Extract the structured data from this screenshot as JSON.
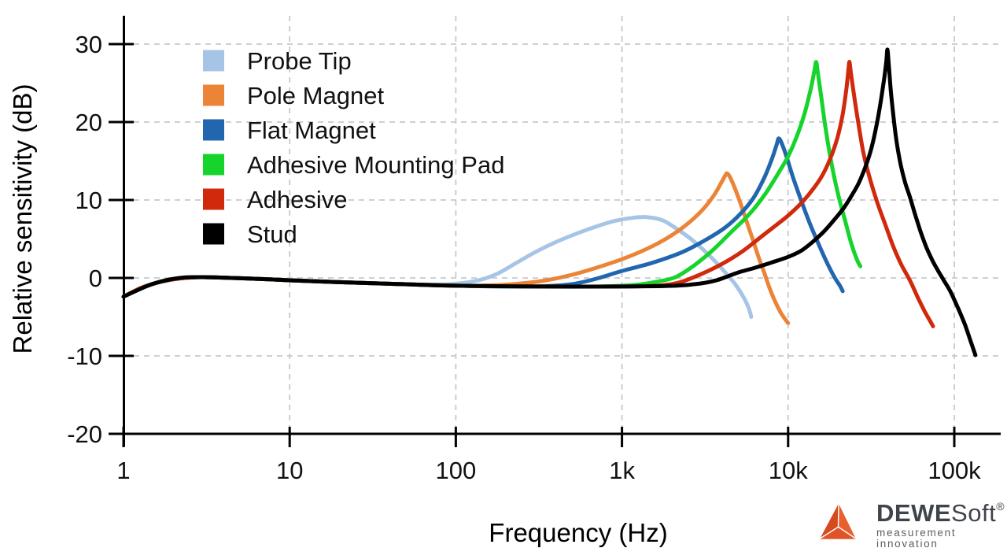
{
  "chart_data": {
    "type": "line",
    "title": "",
    "xlabel": "Frequency (Hz)",
    "ylabel": "Relative sensitivity (dB)",
    "x_scale": "log",
    "xlim": [
      1,
      190000
    ],
    "ylim": [
      -20,
      30
    ],
    "grid": true,
    "grid_style": "dashed",
    "grid_color": "#c6cacd",
    "axis_color": "#000000",
    "legend_position": "top-left",
    "x_ticks": [
      {
        "value": 1,
        "label": "1"
      },
      {
        "value": 10,
        "label": "10"
      },
      {
        "value": 100,
        "label": "100"
      },
      {
        "value": 1000,
        "label": "1k"
      },
      {
        "value": 10000,
        "label": "10k"
      },
      {
        "value": 100000,
        "label": "100k"
      }
    ],
    "y_ticks": [
      {
        "value": 30,
        "label": "30"
      },
      {
        "value": 20,
        "label": "20"
      },
      {
        "value": 10,
        "label": "10"
      },
      {
        "value": 0,
        "label": "0"
      },
      {
        "value": -10,
        "label": "-10"
      },
      {
        "value": -20,
        "label": "-20"
      }
    ],
    "points_format": [
      "frequency_hz",
      "relative_sensitivity_db"
    ],
    "series": [
      {
        "name": "Probe Tip",
        "color": "#a6c5e6",
        "points": [
          [
            1,
            -2.4
          ],
          [
            1.3,
            -1.2
          ],
          [
            1.7,
            -0.45
          ],
          [
            2.2,
            -0.05
          ],
          [
            3,
            0.1
          ],
          [
            4.5,
            0
          ],
          [
            7,
            -0.15
          ],
          [
            10,
            -0.3
          ],
          [
            20,
            -0.55
          ],
          [
            45,
            -0.78
          ],
          [
            70,
            -0.85
          ],
          [
            100,
            -0.75
          ],
          [
            140,
            -0.25
          ],
          [
            180,
            0.6
          ],
          [
            230,
            1.9
          ],
          [
            300,
            3.3
          ],
          [
            400,
            4.6
          ],
          [
            550,
            5.8
          ],
          [
            700,
            6.6
          ],
          [
            900,
            7.3
          ],
          [
            1150,
            7.7
          ],
          [
            1400,
            7.8
          ],
          [
            1750,
            7.4
          ],
          [
            2100,
            6.4
          ],
          [
            2600,
            5
          ],
          [
            3200,
            3.3
          ],
          [
            3800,
            1.7
          ],
          [
            4300,
            0.4
          ],
          [
            4800,
            -0.8
          ],
          [
            5400,
            -2.5
          ],
          [
            5800,
            -3.9
          ],
          [
            6000,
            -5
          ]
        ]
      },
      {
        "name": "Pole Magnet",
        "color": "#ec8438",
        "points": [
          [
            1,
            -2.4
          ],
          [
            1.3,
            -1.2
          ],
          [
            1.7,
            -0.45
          ],
          [
            2.2,
            -0.05
          ],
          [
            3,
            0.1
          ],
          [
            4.5,
            0
          ],
          [
            7,
            -0.15
          ],
          [
            10,
            -0.3
          ],
          [
            20,
            -0.55
          ],
          [
            45,
            -0.78
          ],
          [
            100,
            -1
          ],
          [
            170,
            -0.95
          ],
          [
            250,
            -0.7
          ],
          [
            350,
            -0.3
          ],
          [
            500,
            0.4
          ],
          [
            700,
            1.3
          ],
          [
            1000,
            2.4
          ],
          [
            1400,
            3.7
          ],
          [
            1900,
            5.2
          ],
          [
            2500,
            7
          ],
          [
            3100,
            8.9
          ],
          [
            3600,
            10.7
          ],
          [
            4000,
            12.4
          ],
          [
            4200,
            13.2
          ],
          [
            4300,
            13.4
          ],
          [
            4500,
            12.8
          ],
          [
            4800,
            11.4
          ],
          [
            5200,
            9.4
          ],
          [
            5700,
            6.9
          ],
          [
            6200,
            4.6
          ],
          [
            6700,
            2.4
          ],
          [
            7200,
            0.6
          ],
          [
            7700,
            -1.2
          ],
          [
            8300,
            -2.9
          ],
          [
            9000,
            -4.4
          ],
          [
            9600,
            -5.3
          ],
          [
            10000,
            -5.8
          ]
        ]
      },
      {
        "name": "Flat Magnet",
        "color": "#2166ae",
        "points": [
          [
            1,
            -2.4
          ],
          [
            1.3,
            -1.2
          ],
          [
            1.7,
            -0.45
          ],
          [
            2.2,
            -0.05
          ],
          [
            3,
            0.1
          ],
          [
            4.5,
            0
          ],
          [
            7,
            -0.15
          ],
          [
            10,
            -0.3
          ],
          [
            20,
            -0.55
          ],
          [
            45,
            -0.78
          ],
          [
            100,
            -1
          ],
          [
            200,
            -1.1
          ],
          [
            350,
            -1.05
          ],
          [
            500,
            -0.8
          ],
          [
            700,
            -0.1
          ],
          [
            1000,
            0.9
          ],
          [
            1500,
            1.9
          ],
          [
            2300,
            3.3
          ],
          [
            3200,
            4.9
          ],
          [
            4200,
            6.5
          ],
          [
            5200,
            8.3
          ],
          [
            6200,
            10.3
          ],
          [
            7200,
            12.9
          ],
          [
            8000,
            15.3
          ],
          [
            8500,
            17
          ],
          [
            8800,
            17.9
          ],
          [
            9300,
            16.9
          ],
          [
            9900,
            15.2
          ],
          [
            10700,
            12.9
          ],
          [
            12000,
            9.9
          ],
          [
            13500,
            7
          ],
          [
            15000,
            4.7
          ],
          [
            17000,
            2.1
          ],
          [
            19000,
            0.1
          ],
          [
            20500,
            -1
          ],
          [
            21300,
            -1.7
          ]
        ]
      },
      {
        "name": "Adhesive Mounting Pad",
        "color": "#15d42c",
        "points": [
          [
            1,
            -2.4
          ],
          [
            1.3,
            -1.2
          ],
          [
            1.7,
            -0.45
          ],
          [
            2.2,
            -0.05
          ],
          [
            3,
            0.1
          ],
          [
            4.5,
            0
          ],
          [
            7,
            -0.15
          ],
          [
            10,
            -0.3
          ],
          [
            20,
            -0.55
          ],
          [
            45,
            -0.78
          ],
          [
            100,
            -1
          ],
          [
            300,
            -1.1
          ],
          [
            700,
            -1.1
          ],
          [
            1200,
            -0.9
          ],
          [
            1700,
            -0.4
          ],
          [
            2100,
            0.1
          ],
          [
            2600,
            1.3
          ],
          [
            3200,
            2.8
          ],
          [
            3700,
            4
          ],
          [
            4500,
            5.8
          ],
          [
            5500,
            7.6
          ],
          [
            6300,
            9
          ],
          [
            7300,
            10.8
          ],
          [
            8100,
            12.3
          ],
          [
            9000,
            13.9
          ],
          [
            10000,
            15.6
          ],
          [
            11300,
            18.2
          ],
          [
            12600,
            21.2
          ],
          [
            13700,
            24.3
          ],
          [
            14400,
            26.6
          ],
          [
            14750,
            27.7
          ],
          [
            15100,
            26.3
          ],
          [
            15800,
            23.3
          ],
          [
            16700,
            19.6
          ],
          [
            17800,
            15.9
          ],
          [
            19000,
            12.8
          ],
          [
            20500,
            9.8
          ],
          [
            22000,
            7.4
          ],
          [
            24000,
            4.4
          ],
          [
            26000,
            2.3
          ],
          [
            27200,
            1.5
          ]
        ]
      },
      {
        "name": "Adhesive",
        "color": "#d0290c",
        "points": [
          [
            1,
            -2.4
          ],
          [
            1.3,
            -1.2
          ],
          [
            1.7,
            -0.45
          ],
          [
            2.2,
            -0.05
          ],
          [
            3,
            0.1
          ],
          [
            4.5,
            0
          ],
          [
            7,
            -0.15
          ],
          [
            10,
            -0.3
          ],
          [
            20,
            -0.55
          ],
          [
            45,
            -0.78
          ],
          [
            100,
            -1
          ],
          [
            300,
            -1.1
          ],
          [
            1000,
            -1.1
          ],
          [
            1600,
            -1
          ],
          [
            2200,
            -0.6
          ],
          [
            3000,
            0.5
          ],
          [
            4000,
            1.8
          ],
          [
            5300,
            3.4
          ],
          [
            7000,
            5.4
          ],
          [
            8500,
            6.8
          ],
          [
            10000,
            8
          ],
          [
            12000,
            9.6
          ],
          [
            14000,
            11.3
          ],
          [
            16000,
            13.1
          ],
          [
            18000,
            15.4
          ],
          [
            19800,
            18
          ],
          [
            21300,
            21
          ],
          [
            22400,
            24.2
          ],
          [
            23100,
            26.9
          ],
          [
            23400,
            27.7
          ],
          [
            23900,
            26.2
          ],
          [
            24900,
            23.5
          ],
          [
            26300,
            20.2
          ],
          [
            28300,
            16.2
          ],
          [
            31000,
            12.8
          ],
          [
            34500,
            9.6
          ],
          [
            38500,
            6.8
          ],
          [
            43000,
            4
          ],
          [
            48000,
            1.7
          ],
          [
            54000,
            -0.3
          ],
          [
            60000,
            -2.4
          ],
          [
            66000,
            -4.2
          ],
          [
            71000,
            -5.4
          ],
          [
            74500,
            -6.2
          ]
        ]
      },
      {
        "name": "Stud",
        "color": "#000000",
        "points": [
          [
            1,
            -2.4
          ],
          [
            1.4,
            -1
          ],
          [
            1.8,
            -0.3
          ],
          [
            2.3,
            0.05
          ],
          [
            3,
            0.1
          ],
          [
            4.5,
            0
          ],
          [
            7,
            -0.15
          ],
          [
            10,
            -0.3
          ],
          [
            20,
            -0.55
          ],
          [
            45,
            -0.78
          ],
          [
            100,
            -1
          ],
          [
            300,
            -1.1
          ],
          [
            1000,
            -1.1
          ],
          [
            2100,
            -1
          ],
          [
            3000,
            -0.7
          ],
          [
            3700,
            -0.3
          ],
          [
            4200,
            0.1
          ],
          [
            5000,
            0.7
          ],
          [
            6300,
            1.3
          ],
          [
            8000,
            2
          ],
          [
            10000,
            2.7
          ],
          [
            12000,
            3.5
          ],
          [
            14000,
            4.6
          ],
          [
            16500,
            6
          ],
          [
            19000,
            7.5
          ],
          [
            21500,
            8.9
          ],
          [
            24000,
            10.5
          ],
          [
            26500,
            12.1
          ],
          [
            29000,
            14.1
          ],
          [
            31500,
            16.4
          ],
          [
            34000,
            19.5
          ],
          [
            36000,
            22.5
          ],
          [
            37800,
            25.5
          ],
          [
            39000,
            27.8
          ],
          [
            39600,
            29.3
          ],
          [
            40300,
            27.5
          ],
          [
            41500,
            24
          ],
          [
            43000,
            20.8
          ],
          [
            45000,
            17.4
          ],
          [
            47500,
            14.6
          ],
          [
            50500,
            12.3
          ],
          [
            54000,
            10.4
          ],
          [
            58000,
            8.2
          ],
          [
            63000,
            5.8
          ],
          [
            68000,
            3.9
          ],
          [
            74000,
            2.2
          ],
          [
            80000,
            0.9
          ],
          [
            87000,
            -0.4
          ],
          [
            94000,
            -1.6
          ],
          [
            100000,
            -2.8
          ],
          [
            108000,
            -4.4
          ],
          [
            116000,
            -6
          ],
          [
            124000,
            -7.8
          ],
          [
            131000,
            -9.3
          ],
          [
            134000,
            -9.9
          ]
        ]
      }
    ]
  },
  "branding": {
    "name_bold": "DEWE",
    "name_regular": "Soft",
    "registered": "®",
    "tagline": "measurement innovation",
    "logo_color": "#df5327",
    "text_color": "#3f444a"
  }
}
